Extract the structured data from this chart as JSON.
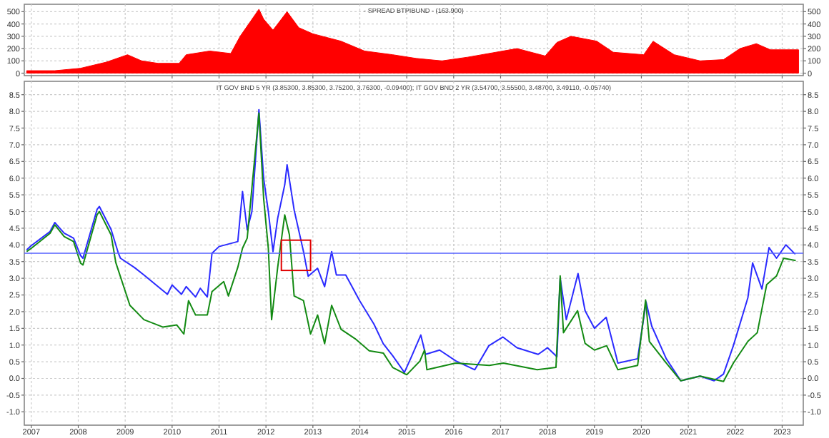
{
  "chart_data": [
    {
      "type": "area",
      "title": "- SPREAD BTPIBUND - (163.900)",
      "xlim": [
        2006.85,
        2023.45
      ],
      "xticks": [
        2007,
        2008,
        2009,
        2010,
        2011,
        2012,
        2013,
        2014,
        2015,
        2016,
        2017,
        2018,
        2019,
        2020,
        2021,
        2022,
        2023
      ],
      "ylim": [
        -20,
        560
      ],
      "yticks": [
        0,
        100,
        200,
        300,
        400,
        500
      ],
      "y2lim": [
        -20,
        560
      ],
      "y2ticks": [
        0,
        100,
        200,
        300,
        400,
        500
      ],
      "tick_labels": "y",
      "grid": true,
      "series": [
        {
          "color": "#ff0000",
          "x": [
            2006.9,
            2007.5,
            2008.05,
            2008.6,
            2009.05,
            2009.35,
            2009.7,
            2010.15,
            2010.3,
            2010.8,
            2011.25,
            2011.45,
            2011.85,
            2011.95,
            2012.15,
            2012.45,
            2012.7,
            2013.0,
            2013.6,
            2014.1,
            2014.7,
            2015.2,
            2015.75,
            2016.3,
            2016.9,
            2017.35,
            2017.95,
            2018.2,
            2018.5,
            2019.05,
            2019.4,
            2020.05,
            2020.25,
            2020.7,
            2021.25,
            2021.75,
            2022.1,
            2022.45,
            2022.75,
            2023.35
          ],
          "values": [
            20,
            20,
            40,
            90,
            150,
            100,
            80,
            80,
            150,
            180,
            160,
            300,
            520,
            440,
            350,
            500,
            370,
            320,
            260,
            180,
            150,
            120,
            100,
            130,
            170,
            200,
            140,
            250,
            300,
            260,
            170,
            150,
            260,
            150,
            100,
            110,
            200,
            240,
            190,
            190
          ]
        }
      ]
    },
    {
      "type": "line",
      "title": "IT GOV BND 5 YR (3.85300, 3.85300, 3.75200, 3.76300, -0.09400); IT GOV BND 2 YR (3.54700, 3.55500, 3.48700, 3.49110, -0.05740)",
      "xlim": [
        2006.85,
        2023.45
      ],
      "xticks": [
        2007,
        2008,
        2009,
        2010,
        2011,
        2012,
        2013,
        2014,
        2015,
        2016,
        2017,
        2018,
        2019,
        2020,
        2021,
        2022,
        2023
      ],
      "ylim": [
        -1.4,
        8.9
      ],
      "yticks": [
        {
          "value": -1,
          "label": "-1.0"
        },
        -0.5,
        {
          "value": 0,
          "label": "0.0"
        },
        0.5,
        {
          "value": 1,
          "label": "1.0"
        },
        1.5,
        {
          "value": 2,
          "label": "2.0"
        },
        2.5,
        {
          "value": 3,
          "label": "3.0"
        },
        3.5,
        {
          "value": 4,
          "label": "4.0"
        },
        4.5,
        {
          "value": 5,
          "label": "5.0"
        },
        5.5,
        {
          "value": 6,
          "label": "6.0"
        },
        6.5,
        {
          "value": 7,
          "label": "7.0"
        },
        7.5,
        {
          "value": 8,
          "label": "8.0"
        },
        8.5
      ],
      "y2lim": [
        -1.4,
        8.9
      ],
      "y2ticks": [
        {
          "value": -1,
          "label": "-1.0"
        },
        -0.5,
        {
          "value": 0,
          "label": "0.0"
        },
        0.5,
        {
          "value": 1,
          "label": "1.0"
        },
        1.5,
        {
          "value": 2,
          "label": "2.0"
        },
        2.5,
        {
          "value": 3,
          "label": "3.0"
        },
        3.5,
        {
          "value": 4,
          "label": "4.0"
        },
        4.5,
        {
          "value": 5,
          "label": "5.0"
        },
        5.5,
        {
          "value": 6,
          "label": "6.0"
        },
        6.5,
        {
          "value": 7,
          "label": "7.0"
        },
        7.5,
        {
          "value": 8,
          "label": "8.0"
        },
        8.5
      ],
      "grid": true,
      "marker": "none",
      "line_style": "solid",
      "ref_lines": [
        {
          "axis": "y",
          "value": 3.75,
          "color": "#5560ff"
        }
      ],
      "series": [
        {
          "color": "#2b2bff",
          "x": [
            2006.9,
            2007.0,
            2007.4,
            2007.5,
            2007.7,
            2007.9,
            2008.05,
            2008.1,
            2008.4,
            2008.45,
            2008.7,
            2008.85,
            2008.9,
            2009.2,
            2009.4,
            2009.7,
            2009.9,
            2010.0,
            2010.2,
            2010.3,
            2010.5,
            2010.6,
            2010.75,
            2010.85,
            2011.0,
            2011.4,
            2011.5,
            2011.6,
            2011.7,
            2011.85,
            2011.95,
            2012.05,
            2012.15,
            2012.25,
            2012.4,
            2012.45,
            2012.6,
            2012.8,
            2012.9,
            2013.1,
            2013.25,
            2013.4,
            2013.5,
            2013.7,
            2014.0,
            2014.3,
            2014.5,
            2014.7,
            2014.95,
            2015.1,
            2015.3,
            2015.4,
            2015.7,
            2016.05,
            2016.45,
            2016.75,
            2017.05,
            2017.35,
            2017.8,
            2018.0,
            2018.2,
            2018.27,
            2018.4,
            2018.65,
            2018.8,
            2019.0,
            2019.25,
            2019.5,
            2019.92,
            2020.1,
            2020.22,
            2020.53,
            2020.84,
            2021.25,
            2021.55,
            2021.75,
            2021.96,
            2022.27,
            2022.37,
            2022.57,
            2022.72,
            2022.88,
            2023.08,
            2023.28
          ],
          "values": [
            3.85,
            3.98,
            4.4,
            4.67,
            4.35,
            4.2,
            3.68,
            3.6,
            5.06,
            5.15,
            4.46,
            3.77,
            3.6,
            3.32,
            3.1,
            2.75,
            2.52,
            2.8,
            2.52,
            2.75,
            2.44,
            2.7,
            2.44,
            3.75,
            3.95,
            4.1,
            5.6,
            4.45,
            5.0,
            8.05,
            6.0,
            5.0,
            3.8,
            4.8,
            5.8,
            6.4,
            5.05,
            3.8,
            3.06,
            3.3,
            2.75,
            3.8,
            3.1,
            3.1,
            2.32,
            1.63,
            1.04,
            0.68,
            0.18,
            0.65,
            1.3,
            0.72,
            0.85,
            0.52,
            0.26,
            0.98,
            1.24,
            0.92,
            0.72,
            0.92,
            0.65,
            3.0,
            1.76,
            3.14,
            2.03,
            1.5,
            1.83,
            0.46,
            0.59,
            2.29,
            1.57,
            0.59,
            -0.07,
            0.07,
            -0.07,
            0.13,
            0.98,
            2.42,
            3.46,
            2.68,
            3.92,
            3.6,
            4.0,
            3.72
          ]
        },
        {
          "color": "#138a13",
          "x": [
            2006.9,
            2007.0,
            2007.4,
            2007.5,
            2007.7,
            2007.9,
            2008.05,
            2008.1,
            2008.4,
            2008.45,
            2008.7,
            2008.8,
            2009.1,
            2009.4,
            2009.8,
            2010.1,
            2010.25,
            2010.35,
            2010.5,
            2010.75,
            2010.85,
            2011.1,
            2011.2,
            2011.4,
            2011.5,
            2011.6,
            2011.85,
            2011.95,
            2012.05,
            2012.12,
            2012.25,
            2012.4,
            2012.5,
            2012.6,
            2012.8,
            2012.95,
            2013.1,
            2013.25,
            2013.4,
            2013.6,
            2013.9,
            2014.2,
            2014.5,
            2014.7,
            2015.0,
            2015.28,
            2015.38,
            2015.43,
            2016.04,
            2016.76,
            2017.06,
            2017.78,
            2018.18,
            2018.27,
            2018.34,
            2018.64,
            2018.8,
            2019.0,
            2019.26,
            2019.5,
            2019.92,
            2020.09,
            2020.17,
            2020.53,
            2020.84,
            2021.25,
            2021.75,
            2021.96,
            2022.27,
            2022.47,
            2022.67,
            2022.88,
            2023.03,
            2023.29
          ],
          "values": [
            3.8,
            3.9,
            4.35,
            4.6,
            4.25,
            4.1,
            3.45,
            3.4,
            4.9,
            5.0,
            4.3,
            3.47,
            2.19,
            1.76,
            1.54,
            1.6,
            1.33,
            2.33,
            1.9,
            1.9,
            2.6,
            2.9,
            2.47,
            3.33,
            3.9,
            4.2,
            7.95,
            5.4,
            3.9,
            1.76,
            3.33,
            4.9,
            4.3,
            2.47,
            2.33,
            1.33,
            1.9,
            1.04,
            2.19,
            1.47,
            1.19,
            0.83,
            0.76,
            0.33,
            0.11,
            0.52,
            0.85,
            0.26,
            0.46,
            0.39,
            0.46,
            0.26,
            0.33,
            3.07,
            1.37,
            2.03,
            1.05,
            0.85,
            0.98,
            0.26,
            0.39,
            2.35,
            1.11,
            0.46,
            -0.07,
            0.07,
            -0.09,
            0.46,
            1.11,
            1.37,
            2.81,
            3.07,
            3.6,
            3.53
          ]
        }
      ]
    }
  ]
}
